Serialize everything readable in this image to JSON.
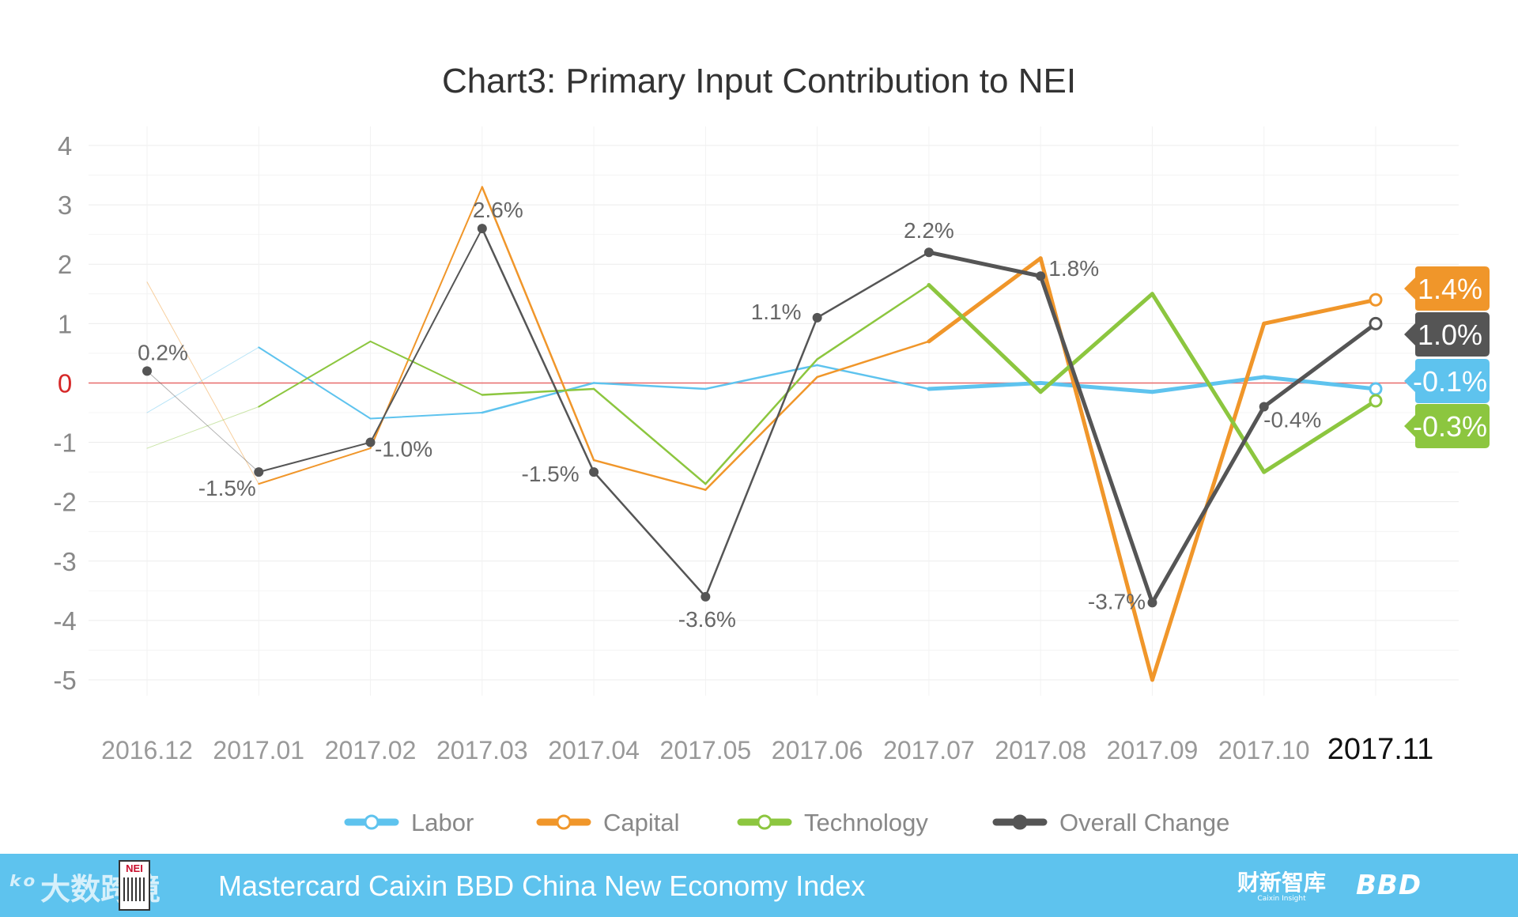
{
  "chart_data": {
    "type": "line",
    "title": "Chart3: Primary Input Contribution to NEI",
    "xlabel": "",
    "ylabel": "",
    "ylim": [
      -5,
      4
    ],
    "yticks": [
      4,
      3,
      2,
      1,
      0,
      -1,
      -2,
      -3,
      -4,
      -5
    ],
    "grid": true,
    "legend_position": "bottom",
    "categories": [
      "2016.12",
      "2017.01",
      "2017.02",
      "2017.03",
      "2017.04",
      "2017.05",
      "2017.06",
      "2017.07",
      "2017.08",
      "2017.09",
      "2017.10",
      "2017.11"
    ],
    "series": [
      {
        "name": "Labor",
        "color": "#5ec3ee",
        "values": [
          -0.5,
          0.6,
          -0.6,
          -0.5,
          0.0,
          -0.1,
          0.3,
          -0.1,
          0.0,
          -0.15,
          0.1,
          -0.1
        ],
        "end_label": "-0.1%"
      },
      {
        "name": "Capital",
        "color": "#f0962a",
        "values": [
          1.7,
          -1.7,
          -1.1,
          3.3,
          -1.3,
          -1.8,
          0.1,
          0.7,
          2.1,
          -5.0,
          1.0,
          1.4
        ],
        "end_label": "1.4%"
      },
      {
        "name": "Technology",
        "color": "#8cc63f",
        "values": [
          -1.1,
          -0.4,
          0.7,
          -0.2,
          -0.1,
          -1.7,
          0.4,
          1.65,
          -0.15,
          1.5,
          -1.5,
          -0.3
        ],
        "end_label": "-0.3%"
      },
      {
        "name": "Overall Change",
        "color": "#555555",
        "values": [
          0.2,
          -1.5,
          -1.0,
          2.6,
          -1.5,
          -3.6,
          1.1,
          2.2,
          1.8,
          -3.7,
          -0.4,
          1.0
        ],
        "end_label": "1.0%",
        "point_labels": [
          "0.2%",
          "-1.5%",
          "-1.0%",
          "2.6%",
          "-1.5%",
          "-3.6%",
          "1.1%",
          "2.2%",
          "1.8%",
          "-3.7%",
          "-0.4%"
        ]
      }
    ]
  },
  "footer": {
    "watermark_logo": "ᵏᵒ",
    "watermark_text": "大数跨境",
    "badge_text": "NEI",
    "title": "Mastercard Caixin BBD China New Economy Index",
    "brand_caixin": "财新智库",
    "brand_caixin_sub": "Caixin Insight",
    "brand_bbd": "BBD"
  }
}
